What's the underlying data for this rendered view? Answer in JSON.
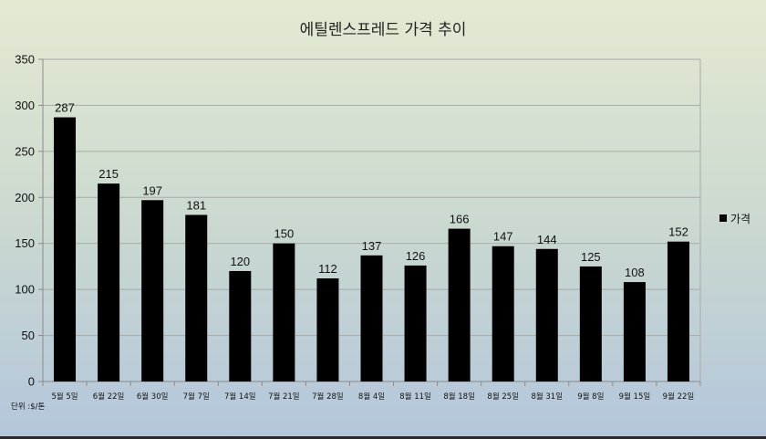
{
  "chart_data": {
    "type": "bar",
    "title": "에틸렌스프레드 가격 추이",
    "unit_note": "단위 :$/톤",
    "categories": [
      "5월 5일",
      "6월 22일",
      "6월 30일",
      "7월 7일",
      "7월 14일",
      "7월 21일",
      "7월 28일",
      "8월 4일",
      "8월 11일",
      "8월 18일",
      "8월 25일",
      "8월 31일",
      "9월 8일",
      "9월 15일",
      "9월 22일"
    ],
    "series": [
      {
        "name": "가격",
        "values": [
          287,
          215,
          197,
          181,
          120,
          150,
          112,
          137,
          126,
          166,
          147,
          144,
          125,
          108,
          152
        ],
        "color": "#000000"
      }
    ],
    "ylim": [
      0,
      350
    ],
    "yticks": [
      0,
      50,
      100,
      150,
      200,
      250,
      300,
      350
    ],
    "grid": true,
    "legend_position": "right",
    "data_labels": true
  }
}
